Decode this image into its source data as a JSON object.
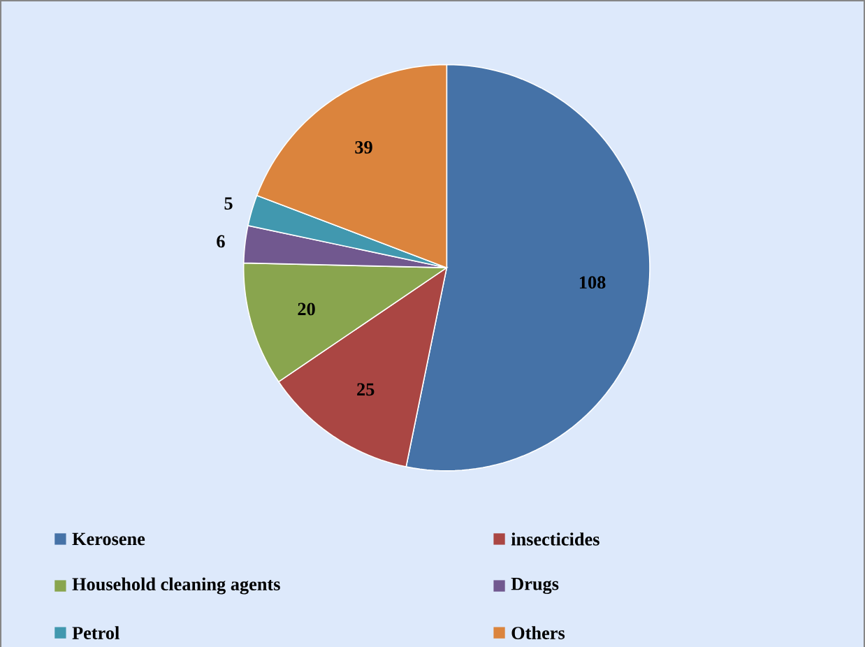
{
  "chart_data": {
    "type": "pie",
    "categories": [
      "Kerosene",
      "insecticides",
      "Household cleaning agents",
      "Drugs",
      "Petrol",
      "Others"
    ],
    "values": [
      108,
      25,
      20,
      6,
      5,
      39
    ],
    "colors": [
      "#4572a7",
      "#aa4643",
      "#89a54e",
      "#71588f",
      "#4198af",
      "#db843d"
    ],
    "data_labels": true,
    "legend": "bottom"
  }
}
